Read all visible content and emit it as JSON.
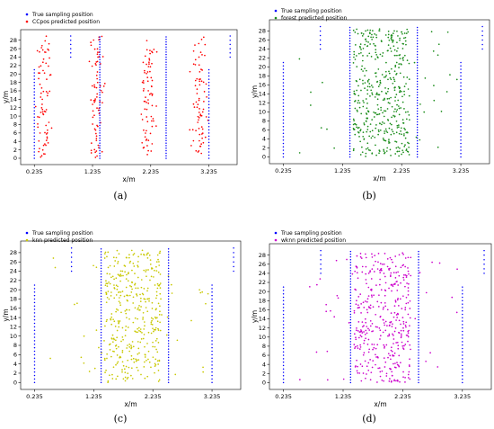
{
  "chart_data": [
    {
      "type": "scatter",
      "panel_label": "(a)",
      "xlabel": "x/m",
      "ylabel": "y/m",
      "xlim": [
        0.0,
        3.72
      ],
      "ylim": [
        -1.5,
        30.5
      ],
      "xticks": [
        0.235,
        1.235,
        2.235,
        3.235
      ],
      "xtick_labels": [
        "0.235",
        "1.235",
        "2.235",
        "3.235"
      ],
      "yticks": [
        0,
        2,
        4,
        6,
        8,
        10,
        12,
        14,
        16,
        18,
        20,
        22,
        24,
        26,
        28
      ],
      "grid": false,
      "legend_position": "top-left",
      "series": [
        {
          "name": "True sampling position",
          "color": "#0000ff",
          "kind": "true"
        },
        {
          "name": "CCpos predicted position",
          "color": "#ff0000",
          "kind": "pred"
        }
      ]
    },
    {
      "type": "scatter",
      "panel_label": "(b)",
      "xlabel": "x/m",
      "ylabel": "y/m",
      "xlim": [
        0.0,
        3.72
      ],
      "ylim": [
        -1.5,
        30.5
      ],
      "xticks": [
        0.235,
        1.235,
        2.235,
        3.235
      ],
      "xtick_labels": [
        "0.235",
        "1.235",
        "2.235",
        "3.235"
      ],
      "yticks": [
        0,
        2,
        4,
        6,
        8,
        10,
        12,
        14,
        16,
        18,
        20,
        22,
        24,
        26,
        28
      ],
      "grid": false,
      "legend_position": "top-left",
      "series": [
        {
          "name": "True sampling position",
          "color": "#0000ff",
          "kind": "true"
        },
        {
          "name": "forest predicted position",
          "color": "#1a8c1a",
          "kind": "pred"
        }
      ]
    },
    {
      "type": "scatter",
      "panel_label": "(c)",
      "xlabel": "x/m",
      "ylabel": "y/m",
      "xlim": [
        0.0,
        3.72
      ],
      "ylim": [
        -1.5,
        30.5
      ],
      "xticks": [
        0.235,
        1.235,
        2.235,
        3.235
      ],
      "xtick_labels": [
        "0.235",
        "1.235",
        "2.235",
        "3.235"
      ],
      "yticks": [
        0,
        2,
        4,
        6,
        8,
        10,
        12,
        14,
        16,
        18,
        20,
        22,
        24,
        26,
        28
      ],
      "grid": false,
      "legend_position": "top-left",
      "series": [
        {
          "name": "True sampling position",
          "color": "#0000ff",
          "kind": "true"
        },
        {
          "name": "knn predicted position",
          "color": "#c8c800",
          "kind": "pred"
        }
      ]
    },
    {
      "type": "scatter",
      "panel_label": "(d)",
      "xlabel": "x/m",
      "ylabel": "y/m",
      "xlim": [
        0.0,
        3.72
      ],
      "ylim": [
        -1.5,
        30.5
      ],
      "xticks": [
        0.235,
        1.235,
        2.235,
        3.235
      ],
      "xtick_labels": [
        "0.235",
        "1.235",
        "2.235",
        "3.235"
      ],
      "yticks": [
        0,
        2,
        4,
        6,
        8,
        10,
        12,
        14,
        16,
        18,
        20,
        22,
        24,
        26,
        28
      ],
      "grid": false,
      "legend_position": "top-left",
      "series": [
        {
          "name": "True sampling position",
          "color": "#0000ff",
          "kind": "true"
        },
        {
          "name": "wknn predicted position",
          "color": "#cc00cc",
          "kind": "pred"
        }
      ]
    }
  ]
}
